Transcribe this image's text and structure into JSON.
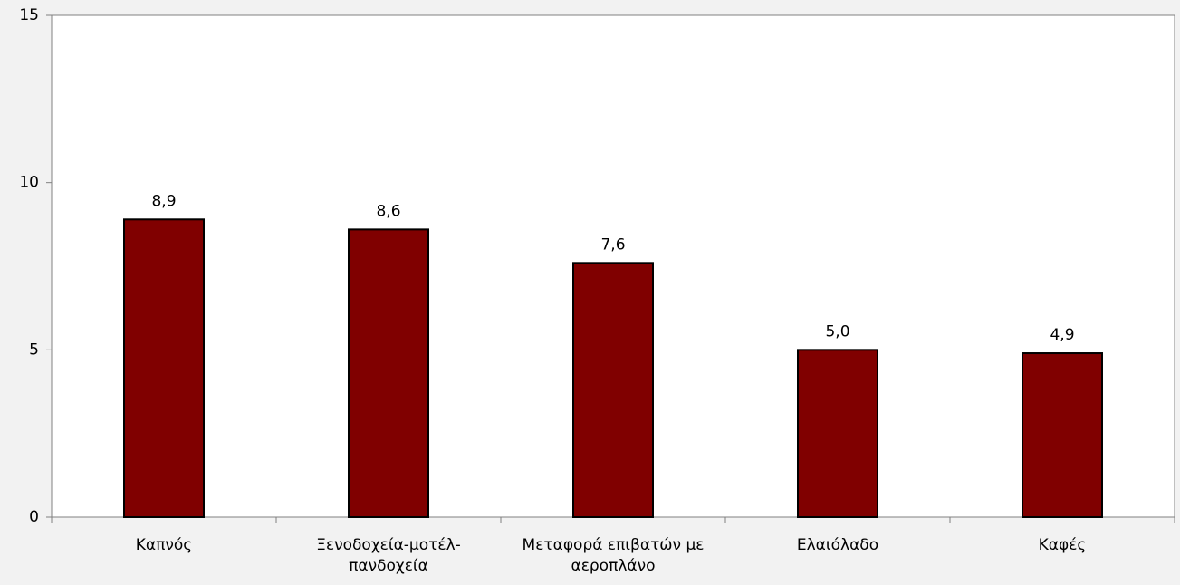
{
  "chart_data": {
    "type": "bar",
    "categories": [
      "Καπνός",
      "Ξενοδοχεία-μοτέλ-πανδοχεία",
      "Μεταφορά επιβατών με αεροπλάνο",
      "Ελαιόλαδο",
      "Καφές"
    ],
    "values": [
      8.9,
      8.6,
      7.6,
      5.0,
      4.9
    ],
    "value_labels": [
      "8,9",
      "8,6",
      "7,6",
      "5,0",
      "4,9"
    ],
    "color": "#800000",
    "ylim": [
      0,
      15
    ],
    "yticks": [
      0,
      5,
      10,
      15
    ],
    "grid": false
  }
}
